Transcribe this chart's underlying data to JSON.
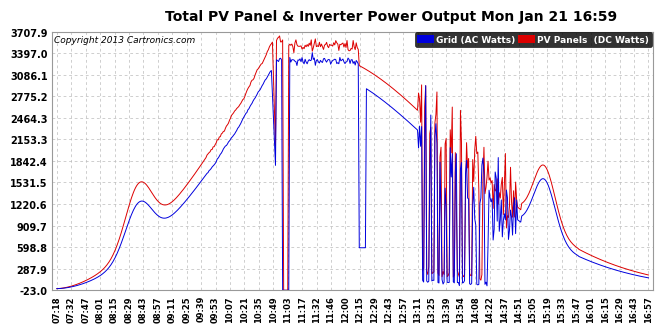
{
  "title": "Total PV Panel & Inverter Power Output Mon Jan 21 16:59",
  "copyright": "Copyright 2013 Cartronics.com",
  "legend_grid": "Grid (AC Watts)",
  "legend_pv": "PV Panels  (DC Watts)",
  "grid_color": "#0000dd",
  "pv_color": "#dd0000",
  "background_color": "#ffffff",
  "plot_bg_color": "#ffffff",
  "grid_line_color": "#bbbbbb",
  "yticks": [
    -23.0,
    287.9,
    598.8,
    909.7,
    1220.6,
    1531.5,
    1842.4,
    2153.3,
    2464.3,
    2775.2,
    3086.1,
    3397.0,
    3707.9
  ],
  "ylim": [
    -23.0,
    3707.9
  ],
  "x_labels": [
    "07:18",
    "07:32",
    "07:47",
    "08:01",
    "08:15",
    "08:29",
    "08:43",
    "08:57",
    "09:11",
    "09:25",
    "09:39",
    "09:53",
    "10:07",
    "10:21",
    "10:35",
    "10:49",
    "11:03",
    "11:17",
    "11:32",
    "11:46",
    "12:00",
    "12:15",
    "12:29",
    "12:43",
    "12:57",
    "13:11",
    "13:25",
    "13:39",
    "13:54",
    "14:08",
    "14:22",
    "14:37",
    "14:51",
    "15:05",
    "15:19",
    "15:33",
    "15:47",
    "16:01",
    "16:15",
    "16:29",
    "16:43",
    "16:57"
  ]
}
